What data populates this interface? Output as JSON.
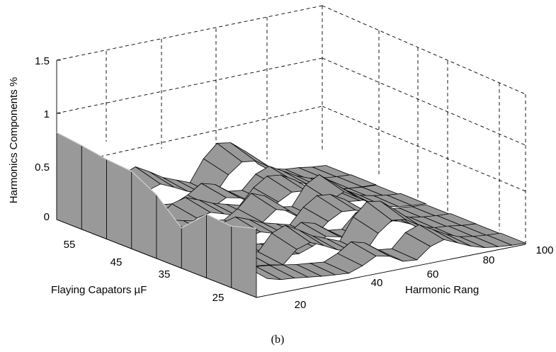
{
  "chart_data": {
    "type": "surface3d",
    "zlabel": "Harmonics Components   %",
    "ylabel": "Flaying Capators  µF",
    "xlabel": "Harmonic Rang",
    "caption": "(b)",
    "z_ticks": [
      "0",
      "0.5",
      "1",
      "1.5"
    ],
    "y_ticks": [
      "55",
      "45",
      "35",
      "25"
    ],
    "x_ticks": [
      "20",
      "40",
      "60",
      "80",
      "100"
    ],
    "zlim": [
      0,
      1.5
    ],
    "ylim": [
      20,
      60
    ],
    "xlim": [
      1,
      100
    ],
    "grid": true,
    "surface_color": "#999999",
    "edge_color": "#000000",
    "y_capacitance": [
      60,
      55,
      50,
      45,
      40,
      35,
      30,
      25,
      20
    ],
    "fundamental_edge_values": [
      0.82,
      0.79,
      0.75,
      0.73,
      0.6,
      0.38,
      0.6,
      0.58,
      0.65
    ],
    "side_ridge": {
      "x": [
        5,
        10,
        15,
        20,
        25,
        30,
        35,
        40,
        45,
        50,
        55,
        60,
        65,
        70,
        75,
        80,
        85,
        90,
        95,
        100
      ],
      "z": [
        0.28,
        0.22,
        0.2,
        0.17,
        0.14,
        0.12,
        0.1,
        0.18,
        0.3,
        0.25,
        0.12,
        0.1,
        0.28,
        0.35,
        0.25,
        0.15,
        0.08,
        0.05,
        0.03,
        0.02
      ]
    },
    "mid_ridge": {
      "x": [
        5,
        10,
        15,
        20,
        25,
        30,
        35,
        40,
        45,
        50,
        55,
        60,
        65,
        70,
        75,
        80,
        85,
        90,
        95,
        100
      ],
      "z": [
        0.25,
        0.2,
        0.18,
        0.15,
        0.3,
        0.35,
        0.28,
        0.2,
        0.15,
        0.1,
        0.3,
        0.42,
        0.4,
        0.3,
        0.15,
        0.08,
        0.05,
        0.04,
        0.02,
        0.01
      ]
    }
  }
}
